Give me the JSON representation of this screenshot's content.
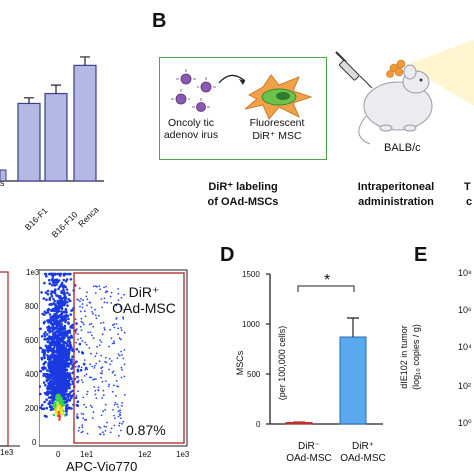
{
  "colors": {
    "bar_fill": "#b4b8e4",
    "bar_stroke": "#3d3f8a",
    "frame_green": "#4aa84a",
    "gate_red": "#b23232",
    "msc_bar_blue": "#5aa8ee",
    "msc_bar_red": "#c0302a"
  },
  "panelA": {
    "bar_labels": [
      "B16-F1",
      "B16-F10",
      "Renca"
    ],
    "partial_label": "s"
  },
  "panelB": {
    "letter": "B",
    "virus_label": "Oncoly tic adenov irus",
    "msc_label_line1": "Fluorescent",
    "msc_label_line2": "DiR⁺ MSC",
    "mouse_label": "BALB/c",
    "step1_line1": "DiR⁺ labeling",
    "step1_line2": "of OAd-MSCs",
    "step2_line1": "Intraperitoneal",
    "step2_line2": "administration",
    "step3_partial_1": "T",
    "step3_partial_2": "c"
  },
  "panelC": {
    "gate_label_line1": "DiR⁺",
    "gate_label_line2": "OAd-MSC",
    "percent": "0.87%",
    "xaxis_label": "APC-Vio770",
    "yticks": [
      "1e3",
      "800",
      "600",
      "400",
      "200",
      "0"
    ],
    "xticks": [
      "0",
      "1e1",
      "1e2",
      "1e3"
    ],
    "left_xtick": "1e3"
  },
  "panelD": {
    "letter": "D",
    "ylabel_line1": "MSCs",
    "ylabel_line2": "(per 100,000 cells)",
    "yticks": [
      "1500",
      "1000",
      "500",
      "0"
    ],
    "categories_line1": [
      "DiR⁻",
      "DiR⁺"
    ],
    "categories_line2": [
      "OAd-MSC",
      "OAd-MSC"
    ],
    "significance": "*"
  },
  "panelE": {
    "letter": "E",
    "ylabel_line1": "dIE102 in tumor",
    "ylabel_line2": "(log₁₀ copies / g)",
    "yticks": [
      "10⁸",
      "10⁶",
      "10⁴",
      "10²",
      "10⁰"
    ]
  },
  "chart_data": [
    {
      "type": "bar",
      "categories": [
        "B16-F1",
        "B16-F10",
        "Renca"
      ],
      "values": [
        0.55,
        0.62,
        0.82
      ],
      "errors": [
        0.04,
        0.06,
        0.06
      ]
    },
    {
      "type": "bar",
      "categories": [
        "DiR⁻ OAd-MSC",
        "DiR⁺ OAd-MSC"
      ],
      "values": [
        15,
        870
      ],
      "errors": [
        5,
        190
      ],
      "ylim": [
        0,
        1500
      ],
      "ylabel": "MSCs (per 100,000 cells)"
    }
  ]
}
